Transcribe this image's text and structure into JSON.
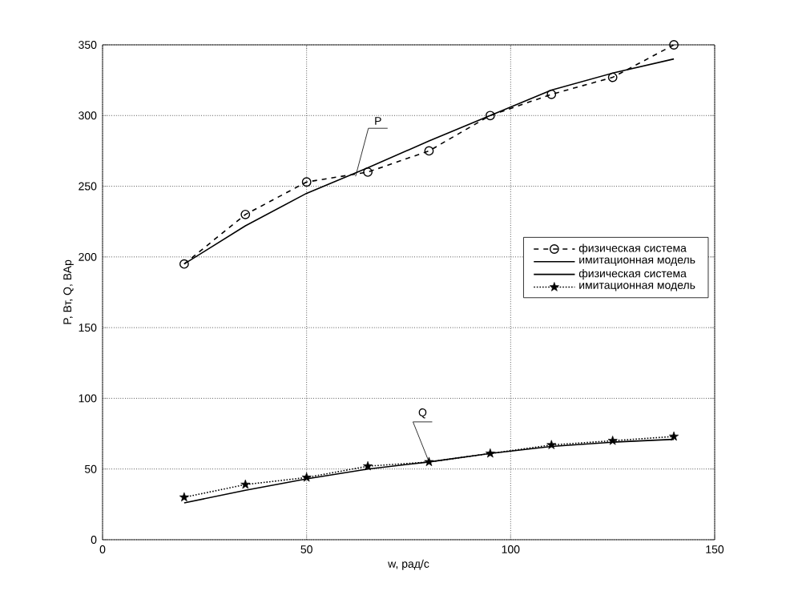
{
  "chart_data": {
    "type": "line",
    "xlabel": "w, рад/с",
    "ylabel": "P, Вт, Q, ВАр",
    "xlim": [
      0,
      150
    ],
    "ylim": [
      0,
      350
    ],
    "xticks": [
      0,
      50,
      100,
      150
    ],
    "yticks": [
      0,
      50,
      100,
      150,
      200,
      250,
      300,
      350
    ],
    "grid": true,
    "legend": "right",
    "x": [
      20,
      35,
      50,
      65,
      80,
      95,
      110,
      125,
      140
    ],
    "series": [
      {
        "name": "физическая система",
        "color": "#000000",
        "line_style": "dashed",
        "marker": "circle",
        "values": [
          195,
          230,
          253,
          260,
          275,
          300,
          315,
          327,
          350
        ]
      },
      {
        "name": "имитационная модель",
        "color": "#000000",
        "line_style": "solid",
        "marker": "none",
        "values": [
          195,
          222,
          245,
          263,
          282,
          300,
          318,
          330,
          340
        ]
      },
      {
        "name": "физическая система",
        "color": "#000000",
        "line_style": "solid",
        "marker": "none",
        "values": [
          26,
          35,
          43,
          50,
          55,
          61,
          66,
          69,
          71
        ]
      },
      {
        "name": "имитационная модель",
        "color": "#000000",
        "line_style": "dotted",
        "marker": "star",
        "values": [
          30,
          39,
          44,
          52,
          55,
          61,
          67,
          70,
          73
        ]
      }
    ],
    "annotations": [
      {
        "text": "P",
        "x": 62,
        "y": 257
      },
      {
        "text": "Q",
        "x": 80,
        "y": 55
      }
    ]
  }
}
